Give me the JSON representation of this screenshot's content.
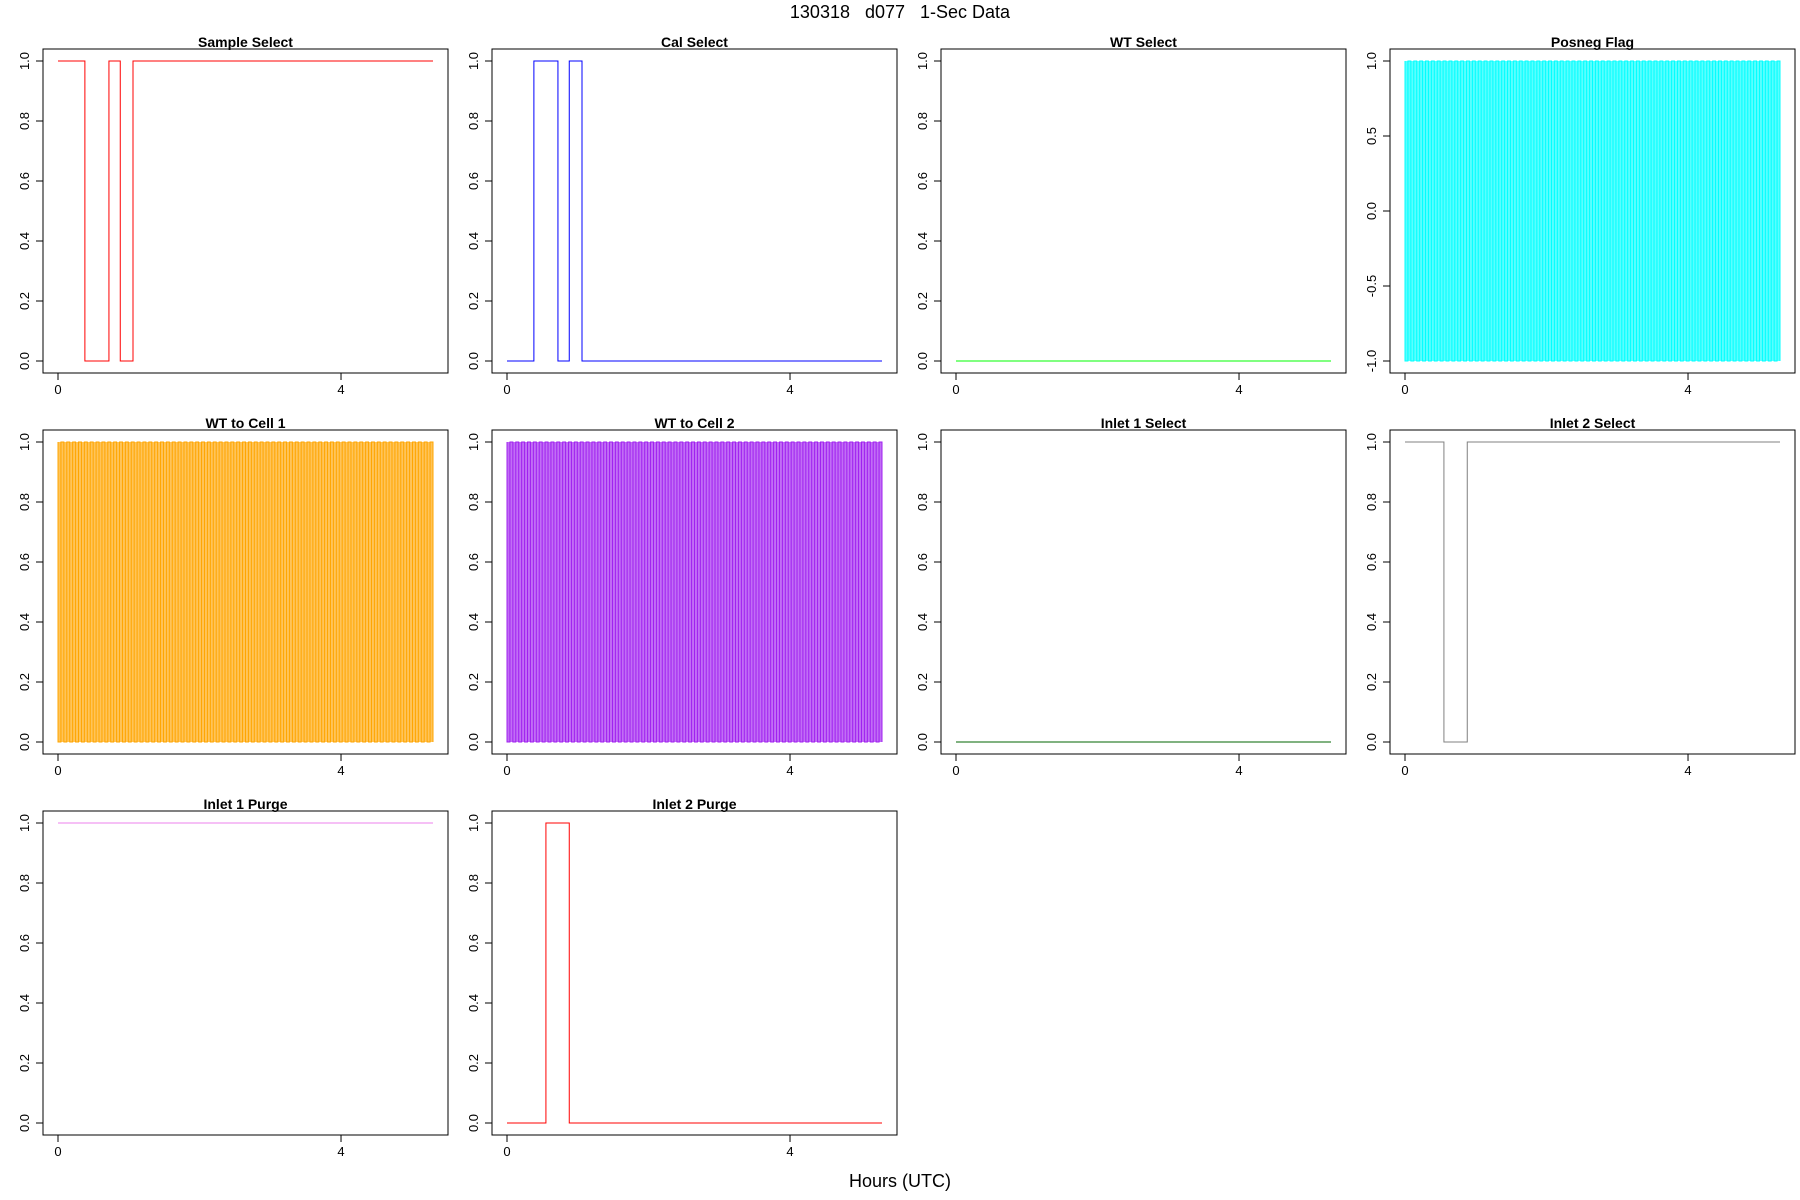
{
  "figure": {
    "title": "130318   d077   1-Sec Data",
    "xlabel": "Hours (UTC)"
  },
  "chart_data": [
    {
      "type": "line",
      "title": "Sample Select",
      "color": "#ff0000",
      "xlim": [
        0,
        5.3
      ],
      "ylim": [
        0,
        1
      ],
      "xticks": [
        0,
        4
      ],
      "yticks": [
        "0.0",
        "0.2",
        "0.4",
        "0.6",
        "0.8",
        "1.0"
      ],
      "style": "step",
      "series": [
        {
          "x": [
            0,
            0.38,
            0.38,
            0.72,
            0.72,
            0.88,
            0.88,
            1.06,
            1.06,
            5.3
          ],
          "y": [
            1,
            1,
            0,
            0,
            1,
            1,
            0,
            0,
            1,
            1
          ]
        }
      ]
    },
    {
      "type": "line",
      "title": "Cal Select",
      "color": "#0000ff",
      "xlim": [
        0,
        5.3
      ],
      "ylim": [
        0,
        1
      ],
      "xticks": [
        0,
        4
      ],
      "yticks": [
        "0.0",
        "0.2",
        "0.4",
        "0.6",
        "0.8",
        "1.0"
      ],
      "style": "step",
      "series": [
        {
          "x": [
            0,
            0.38,
            0.38,
            0.72,
            0.72,
            0.88,
            0.88,
            1.06,
            1.06,
            5.3
          ],
          "y": [
            0,
            0,
            1,
            1,
            0,
            0,
            1,
            1,
            0,
            0
          ]
        }
      ]
    },
    {
      "type": "line",
      "title": "WT Select",
      "color": "#00ff00",
      "xlim": [
        0,
        5.3
      ],
      "ylim": [
        0,
        1
      ],
      "xticks": [
        0,
        4
      ],
      "yticks": [
        "0.0",
        "0.2",
        "0.4",
        "0.6",
        "0.8",
        "1.0"
      ],
      "style": "step",
      "series": [
        {
          "x": [
            0,
            5.3
          ],
          "y": [
            0,
            0
          ]
        }
      ]
    },
    {
      "type": "line",
      "title": "Posneg Flag",
      "color": "#00ffff",
      "xlim": [
        0,
        5.3
      ],
      "ylim": [
        -1,
        1
      ],
      "xticks": [
        0,
        4
      ],
      "yticks": [
        "-1.0",
        "-0.5",
        "0.0",
        "0.5",
        "1.0"
      ],
      "style": "oscillating",
      "series": [
        {
          "x_range": [
            0,
            5.3
          ],
          "y_range": [
            -1,
            1
          ],
          "cycles": 64
        }
      ]
    },
    {
      "type": "line",
      "title": "WT to Cell 1",
      "color": "#ffa500",
      "xlim": [
        0,
        5.3
      ],
      "ylim": [
        0,
        1
      ],
      "xticks": [
        0,
        4
      ],
      "yticks": [
        "0.0",
        "0.2",
        "0.4",
        "0.6",
        "0.8",
        "1.0"
      ],
      "style": "oscillating",
      "series": [
        {
          "x_range": [
            0,
            5.3
          ],
          "y_range": [
            0,
            1
          ],
          "cycles": 64
        }
      ]
    },
    {
      "type": "line",
      "title": "WT to Cell 2",
      "color": "#a020f0",
      "xlim": [
        0,
        5.3
      ],
      "ylim": [
        0,
        1
      ],
      "xticks": [
        0,
        4
      ],
      "yticks": [
        "0.0",
        "0.2",
        "0.4",
        "0.6",
        "0.8",
        "1.0"
      ],
      "style": "oscillating",
      "series": [
        {
          "x_range": [
            0,
            5.3
          ],
          "y_range": [
            0,
            1
          ],
          "cycles": 64
        }
      ]
    },
    {
      "type": "line",
      "title": "Inlet 1 Select",
      "color": "#006400",
      "xlim": [
        0,
        5.3
      ],
      "ylim": [
        0,
        1
      ],
      "xticks": [
        0,
        4
      ],
      "yticks": [
        "0.0",
        "0.2",
        "0.4",
        "0.6",
        "0.8",
        "1.0"
      ],
      "style": "step",
      "series": [
        {
          "x": [
            0,
            5.3
          ],
          "y": [
            0,
            0
          ]
        }
      ]
    },
    {
      "type": "line",
      "title": "Inlet 2 Select",
      "color": "#808080",
      "xlim": [
        0,
        5.3
      ],
      "ylim": [
        0,
        1
      ],
      "xticks": [
        0,
        4
      ],
      "yticks": [
        "0.0",
        "0.2",
        "0.4",
        "0.6",
        "0.8",
        "1.0"
      ],
      "style": "step",
      "series": [
        {
          "x": [
            0,
            0.55,
            0.55,
            0.88,
            0.88,
            5.3
          ],
          "y": [
            1,
            1,
            0,
            0,
            1,
            1
          ]
        }
      ]
    },
    {
      "type": "line",
      "title": "Inlet 1 Purge",
      "color": "#ee82ee",
      "xlim": [
        0,
        5.3
      ],
      "ylim": [
        0,
        1
      ],
      "xticks": [
        0,
        4
      ],
      "yticks": [
        "0.0",
        "0.2",
        "0.4",
        "0.6",
        "0.8",
        "1.0"
      ],
      "style": "step",
      "series": [
        {
          "x": [
            0,
            5.3
          ],
          "y": [
            1,
            1
          ]
        }
      ]
    },
    {
      "type": "line",
      "title": "Inlet 2 Purge",
      "color": "#ff0000",
      "xlim": [
        0,
        5.3
      ],
      "ylim": [
        0,
        1
      ],
      "xticks": [
        0,
        4
      ],
      "yticks": [
        "0.0",
        "0.2",
        "0.4",
        "0.6",
        "0.8",
        "1.0"
      ],
      "style": "step",
      "series": [
        {
          "x": [
            0,
            0.55,
            0.55,
            0.88,
            0.88,
            5.3
          ],
          "y": [
            0,
            0,
            1,
            1,
            0,
            0
          ]
        }
      ]
    }
  ]
}
